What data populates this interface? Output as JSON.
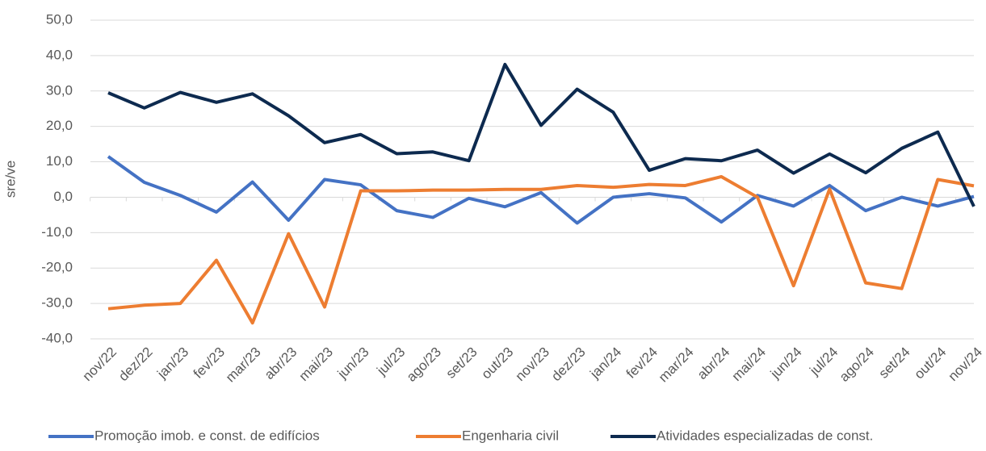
{
  "chart_data": {
    "type": "line",
    "y_label": "sre/ve",
    "categories": [
      "nov/22",
      "dez/22",
      "jan/23",
      "fev/23",
      "mar/23",
      "abr/23",
      "mai/23",
      "jun/23",
      "jul/23",
      "ago/23",
      "set/23",
      "out/23",
      "nov/23",
      "dez/23",
      "jan/24",
      "fev/24",
      "mar/24",
      "abr/24",
      "mai/24",
      "jun/24",
      "jul/24",
      "ago/24",
      "set/24",
      "out/24",
      "nov/24"
    ],
    "series": [
      {
        "name": "Promoção imob. e const. de edifícios",
        "color": "#4472c4",
        "values": [
          11.5,
          4.2,
          0.5,
          -4.2,
          4.3,
          -6.5,
          5.0,
          3.5,
          -3.8,
          -5.7,
          -0.3,
          -2.7,
          1.3,
          -7.3,
          0,
          1.0,
          -0.2,
          -7.0,
          0.5,
          -2.5,
          3.3,
          -3.8,
          0,
          -2.5,
          0.2
        ]
      },
      {
        "name": "Engenharia civil",
        "color": "#ed7d31",
        "values": [
          -31.5,
          -30.5,
          -30,
          -17.8,
          -35.5,
          -10.3,
          -31,
          1.8,
          1.8,
          2.0,
          2.0,
          2.2,
          2.2,
          3.3,
          2.8,
          3.6,
          3.3,
          5.8,
          0,
          -25,
          2.3,
          -24.2,
          -25.8,
          5.0,
          3.2
        ]
      },
      {
        "name": "Atividades especializadas de const.",
        "color": "#0d2a4f",
        "values": [
          29.5,
          25.2,
          29.6,
          26.8,
          29.2,
          23.0,
          15.4,
          17.7,
          12.3,
          12.8,
          10.3,
          37.5,
          20.3,
          30.5,
          24.0,
          7.6,
          10.9,
          10.3,
          13.3,
          6.8,
          12.2,
          6.9,
          13.8,
          18.4,
          -2.6
        ]
      }
    ],
    "ylim": [
      -40,
      50
    ],
    "yticks": [
      {
        "value": -40,
        "label": "-40,0"
      },
      {
        "value": -30,
        "label": "-30,0"
      },
      {
        "value": -20,
        "label": "-20,0"
      },
      {
        "value": -10,
        "label": "-10,0"
      },
      {
        "value": 0,
        "label": "0,0"
      },
      {
        "value": 10,
        "label": "10,0"
      },
      {
        "value": 20,
        "label": "20,0"
      },
      {
        "value": 30,
        "label": "30,0"
      },
      {
        "value": 40,
        "label": "40,0"
      },
      {
        "value": 50,
        "label": "50,0"
      }
    ],
    "grid": true
  }
}
